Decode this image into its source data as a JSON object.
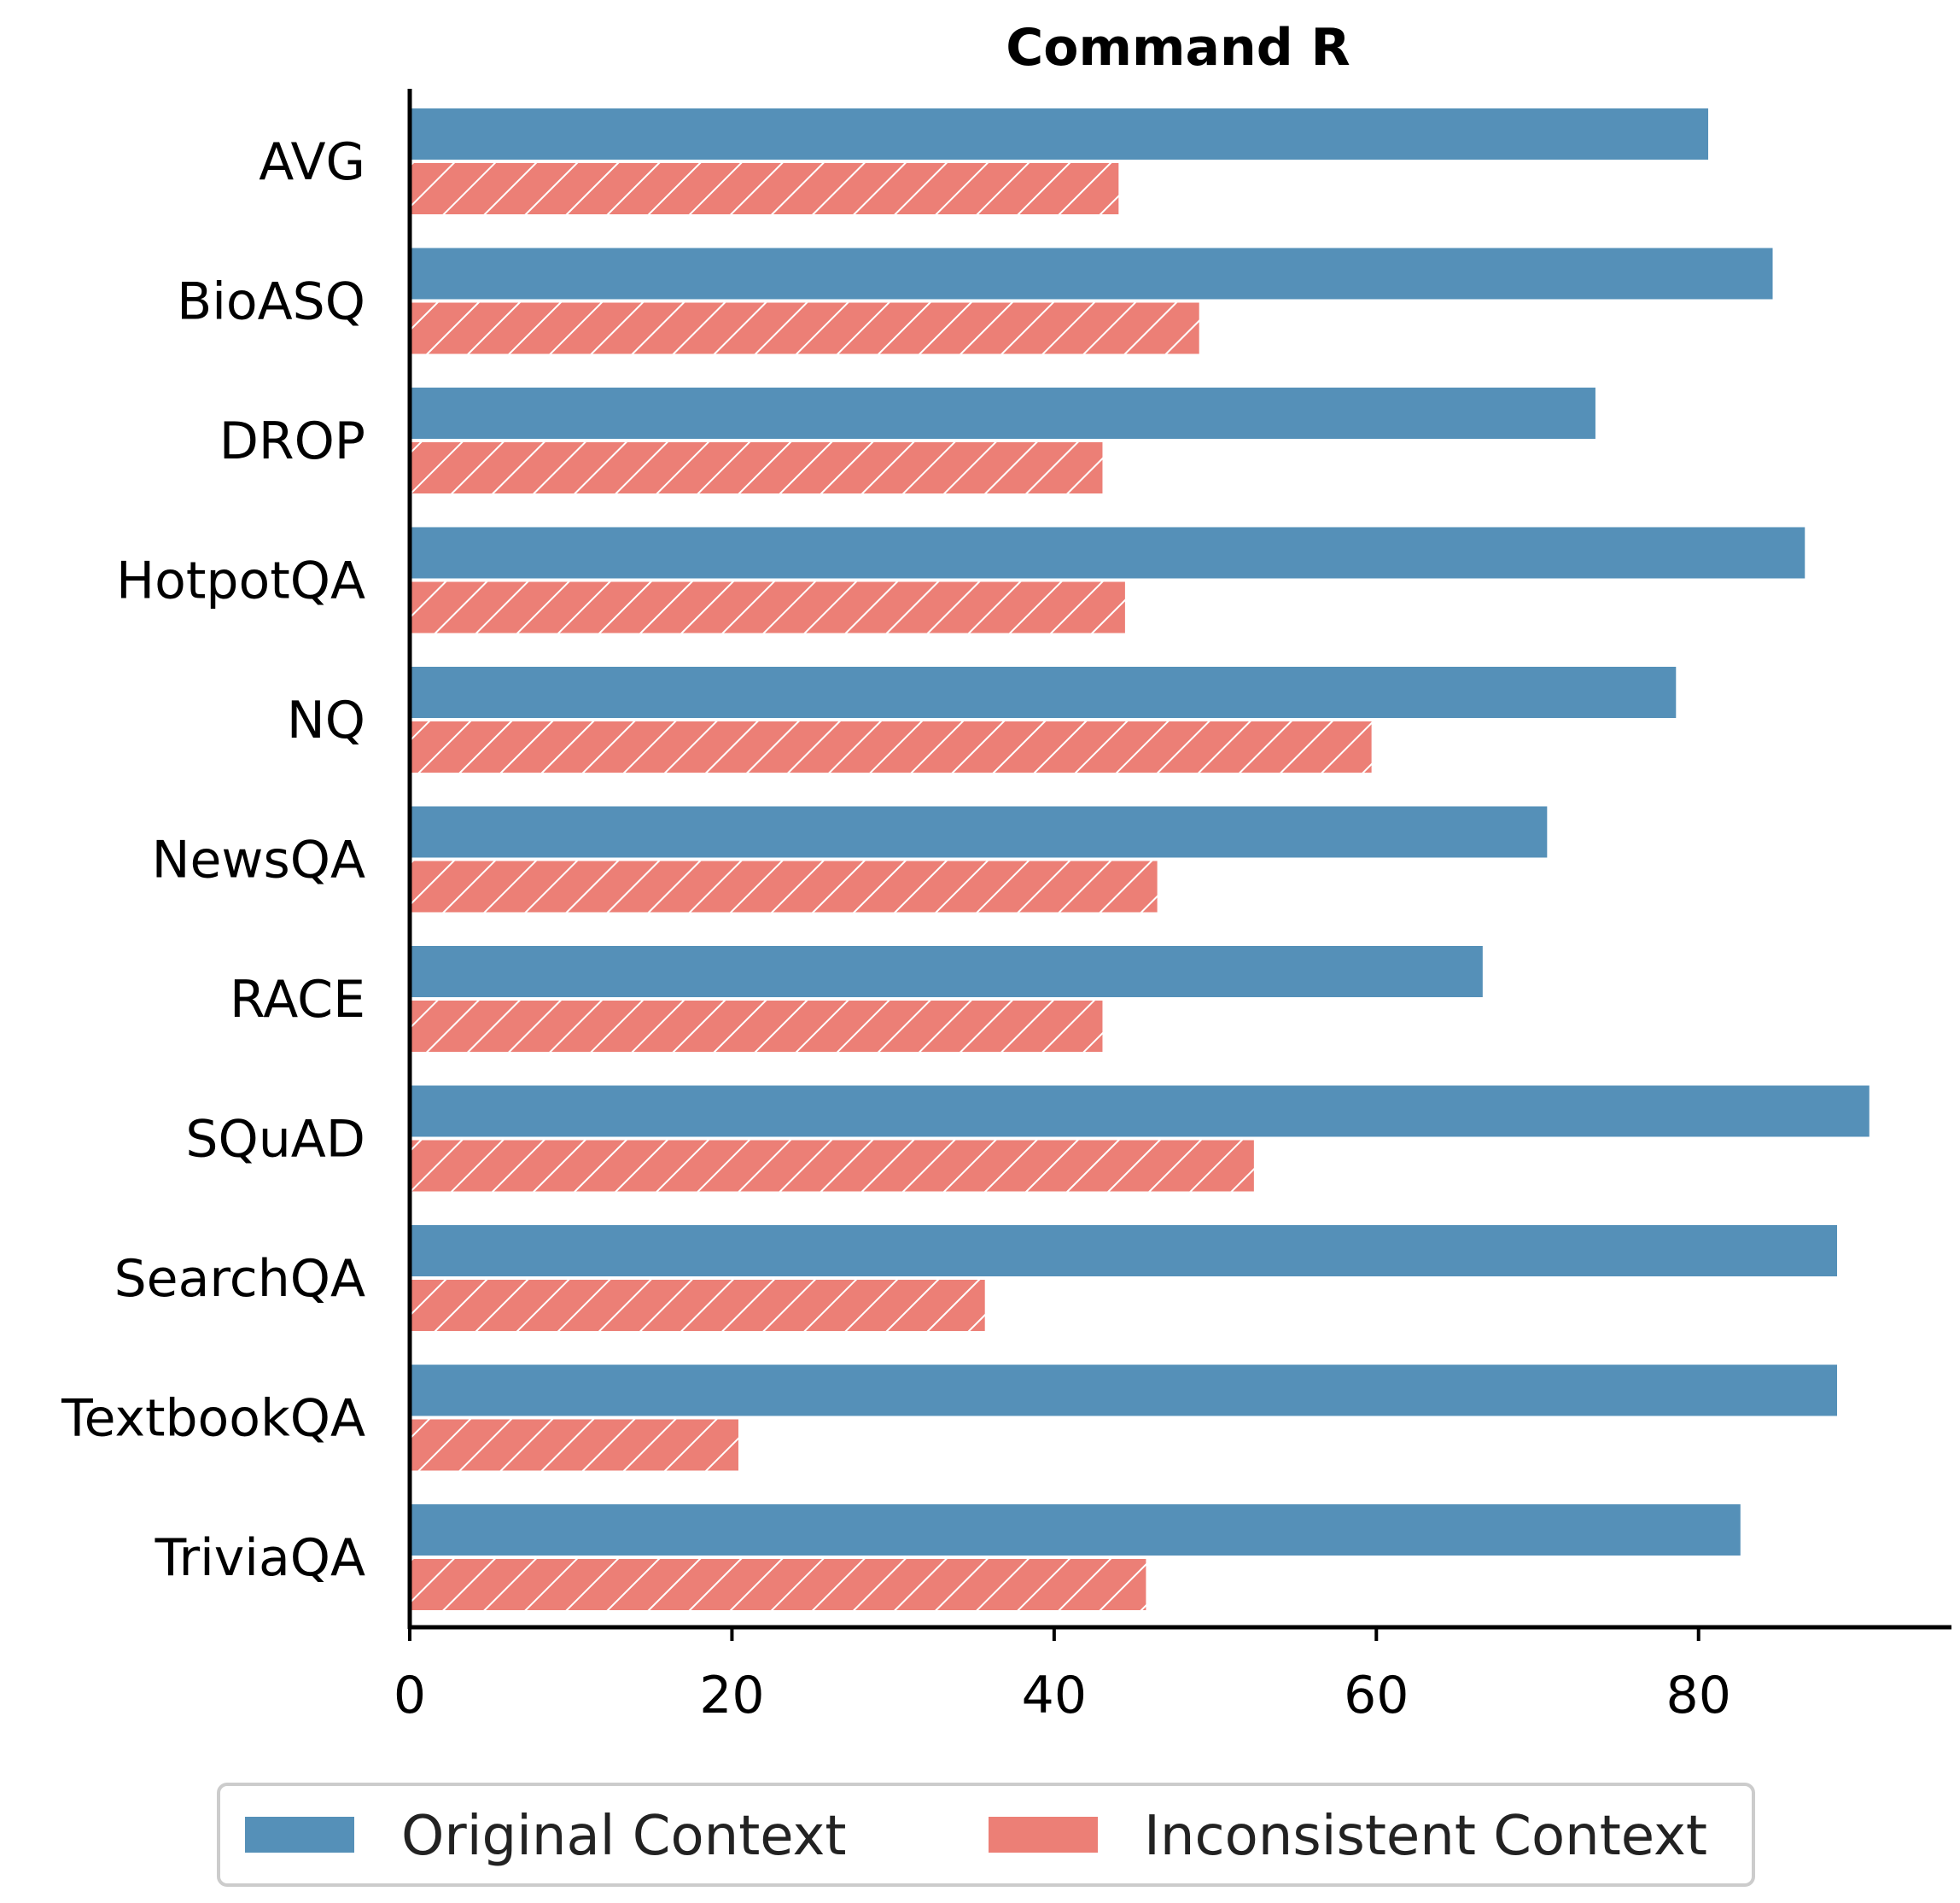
{
  "chart_data": {
    "type": "bar",
    "orientation": "horizontal",
    "title": "Command R",
    "xlabel": "",
    "ylabel": "",
    "categories": [
      "AVG",
      "BioASQ",
      "DROP",
      "HotpotQA",
      "NQ",
      "NewsQA",
      "RACE",
      "SQuAD",
      "SearchQA",
      "TextbookQA",
      "TriviaQA"
    ],
    "series": [
      {
        "name": "Original Context",
        "color": "#5590b8",
        "hatch": "none",
        "values": [
          80.6,
          84.6,
          73.6,
          86.6,
          78.6,
          70.6,
          66.6,
          90.6,
          88.6,
          88.6,
          82.6
        ]
      },
      {
        "name": "Inconsistent Context",
        "color": "#ec7f76",
        "hatch": "diagonal",
        "values": [
          44.0,
          49.0,
          43.0,
          44.4,
          59.7,
          46.4,
          43.0,
          52.4,
          35.7,
          20.4,
          45.7
        ]
      }
    ],
    "xlim": [
      0,
      95.7
    ],
    "xticks": [
      "0",
      "20",
      "40",
      "60",
      "80"
    ],
    "grid": false,
    "legend_position": "bottom-center"
  }
}
